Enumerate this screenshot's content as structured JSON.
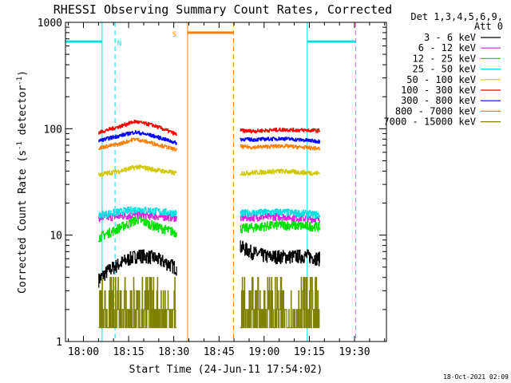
{
  "chart_data": {
    "type": "line",
    "title": "RHESSI Observing Summary Count Rates, Corrected",
    "xlabel": "Start Time (24-Jun-11 17:54:02)",
    "ylabel_main": "Corrected Count Rate (s",
    "ylabel_sup1": "-1",
    "ylabel_mid": " detector",
    "ylabel_sup2": "-1",
    "ylabel_end": ")",
    "footer_timestamp": "18-Oct-2021 02:09",
    "x_start_minutes": 1074.033,
    "xlim_minutes": [
      1074.033,
      1180.6
    ],
    "ylim": [
      1,
      1000
    ],
    "y_scale": "log",
    "x_ticks": [
      {
        "minutes": 1080,
        "label": "18:00"
      },
      {
        "minutes": 1095,
        "label": "18:15"
      },
      {
        "minutes": 1110,
        "label": "18:30"
      },
      {
        "minutes": 1125,
        "label": "18:45"
      },
      {
        "minutes": 1140,
        "label": "19:00"
      },
      {
        "minutes": 1155,
        "label": "19:15"
      },
      {
        "minutes": 1170,
        "label": "19:30"
      }
    ],
    "y_ticks": [
      {
        "value": 1,
        "label": "1"
      },
      {
        "value": 10,
        "label": "10"
      },
      {
        "value": 100,
        "label": "100"
      },
      {
        "value": 1000,
        "label": "1000"
      }
    ],
    "legend": {
      "header_line1": "Det 1,3,4,5,6,9,",
      "header_line2": "Att 0",
      "placement": "top-right outside"
    },
    "segments": [
      [
        1085.0,
        1111.0
      ],
      [
        1132.0,
        1158.5
      ]
    ],
    "series": [
      {
        "name": "3 - 6 keV",
        "color": "#000000",
        "profile": [
          [
            1085,
            3.8
          ],
          [
            1088,
            4.6
          ],
          [
            1093,
            5.6
          ],
          [
            1098,
            6.5
          ],
          [
            1103,
            6.2
          ],
          [
            1108,
            5.4
          ],
          [
            1111,
            4.9
          ],
          [
            1132,
            7.8
          ],
          [
            1136,
            6.9
          ],
          [
            1141,
            6.3
          ],
          [
            1148,
            6.3
          ],
          [
            1154,
            6.4
          ],
          [
            1158.5,
            6.0
          ]
        ],
        "noise": 0.15
      },
      {
        "name": "6 - 12 keV",
        "color": "#e020e0",
        "profile": [
          [
            1085,
            14.5
          ],
          [
            1098,
            15.5
          ],
          [
            1111,
            14.5
          ],
          [
            1132,
            14.5
          ],
          [
            1145,
            15
          ],
          [
            1158.5,
            14
          ]
        ],
        "noise": 0.08
      },
      {
        "name": "12 - 25 keV",
        "color": "#00e000",
        "profile": [
          [
            1085,
            9.5
          ],
          [
            1090,
            11
          ],
          [
            1098,
            14
          ],
          [
            1104,
            12
          ],
          [
            1111,
            10.5
          ],
          [
            1132,
            11.5
          ],
          [
            1145,
            12.5
          ],
          [
            1158.5,
            12
          ]
        ],
        "noise": 0.1
      },
      {
        "name": "25 - 50 keV",
        "color": "#00e0e0",
        "profile": [
          [
            1085,
            15.5
          ],
          [
            1098,
            17.5
          ],
          [
            1111,
            16
          ],
          [
            1132,
            16
          ],
          [
            1145,
            16.5
          ],
          [
            1158.5,
            15.5
          ]
        ],
        "noise": 0.08
      },
      {
        "name": "50 - 100 keV",
        "color": "#d0c800",
        "profile": [
          [
            1085,
            37
          ],
          [
            1092,
            40
          ],
          [
            1098,
            44
          ],
          [
            1104,
            41
          ],
          [
            1111,
            38
          ],
          [
            1132,
            38
          ],
          [
            1145,
            40
          ],
          [
            1158.5,
            38
          ]
        ],
        "noise": 0.05
      },
      {
        "name": "100 - 300 keV",
        "color": "#ff0000",
        "profile": [
          [
            1085,
            92
          ],
          [
            1092,
            105
          ],
          [
            1097,
            117
          ],
          [
            1103,
            108
          ],
          [
            1111,
            88
          ],
          [
            1132,
            96
          ],
          [
            1136,
            95
          ],
          [
            1146,
            98
          ],
          [
            1158.5,
            96
          ]
        ],
        "noise": 0.04
      },
      {
        "name": "300 - 800 keV",
        "color": "#0000ff",
        "profile": [
          [
            1085,
            77
          ],
          [
            1092,
            86
          ],
          [
            1097,
            93
          ],
          [
            1103,
            86
          ],
          [
            1111,
            73
          ],
          [
            1132,
            80
          ],
          [
            1136,
            79
          ],
          [
            1146,
            81
          ],
          [
            1158.5,
            76
          ]
        ],
        "noise": 0.04
      },
      {
        "name": "800 - 7000 keV",
        "color": "#ff8000",
        "profile": [
          [
            1085,
            66
          ],
          [
            1092,
            72
          ],
          [
            1097,
            80
          ],
          [
            1103,
            73
          ],
          [
            1111,
            63
          ],
          [
            1132,
            68
          ],
          [
            1136,
            67
          ],
          [
            1146,
            69
          ],
          [
            1158.5,
            65
          ]
        ],
        "noise": 0.04
      },
      {
        "name": "7000 - 15000 keV",
        "color": "#808000",
        "profile": [
          [
            1085,
            2
          ],
          [
            1098,
            3
          ],
          [
            1111,
            2
          ],
          [
            1132,
            2
          ],
          [
            1145,
            2.5
          ],
          [
            1158.5,
            2
          ]
        ],
        "noise": 0.0
      }
    ],
    "annotations": [
      {
        "label": "N",
        "color": "#00e0e0",
        "flag_value": 660,
        "flag_from": 1074.033,
        "flag_to": 1086.2,
        "solid_line_at": 1086.2,
        "dashed_line_at": 1090.5,
        "label_at": 1091.2
      },
      {
        "label": "S",
        "color": "#ff8000",
        "flag_value": 800,
        "flag_from": 1114.6,
        "flag_to": 1129.8,
        "solid_line_at": 1114.6,
        "dashed_line_at": 1129.8,
        "label_at": 1109.5
      },
      {
        "label": "",
        "color": "#00e0e0",
        "flag_value": 660,
        "flag_from": 1154.3,
        "flag_to": 1170.4,
        "solid_line_at": 1154.3,
        "dashed_line_at": 1170.4,
        "label_at": null
      }
    ]
  }
}
